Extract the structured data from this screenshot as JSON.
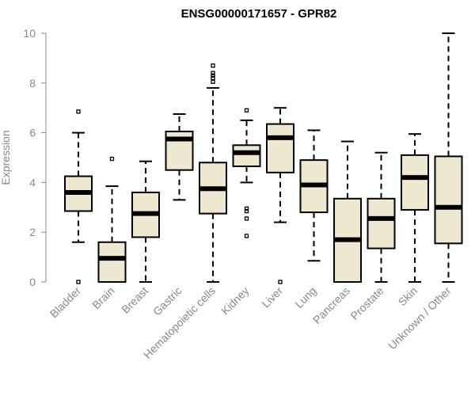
{
  "chart_data": {
    "type": "boxplot",
    "title": "ENSG00000171657 - GPR82",
    "xlabel": "",
    "ylabel": "Expression",
    "ylim": [
      0,
      10
    ],
    "yticks": [
      0,
      2,
      4,
      6,
      8,
      10
    ],
    "grid": false,
    "categories": [
      "Bladder",
      "Brain",
      "Breast",
      "Gastric",
      "Hematopoietic cells",
      "Kidney",
      "Liver",
      "Lung",
      "Pancreas",
      "Prostate",
      "Skin",
      "Unknown / Other"
    ],
    "boxes": [
      {
        "name": "Bladder",
        "whisker_low": 1.6,
        "q1": 2.85,
        "median": 3.6,
        "q3": 4.25,
        "whisker_high": 6.0,
        "outliers": [
          6.85,
          0.0
        ]
      },
      {
        "name": "Brain",
        "whisker_low": 0.0,
        "q1": 0.0,
        "median": 0.95,
        "q3": 1.6,
        "whisker_high": 3.85,
        "outliers": [
          4.95
        ]
      },
      {
        "name": "Breast",
        "whisker_low": 0.0,
        "q1": 1.8,
        "median": 2.75,
        "q3": 3.6,
        "whisker_high": 4.85,
        "outliers": []
      },
      {
        "name": "Gastric",
        "whisker_low": 3.3,
        "q1": 4.5,
        "median": 5.75,
        "q3": 6.05,
        "whisker_high": 6.75,
        "outliers": []
      },
      {
        "name": "Hematopoietic cells",
        "whisker_low": 0.0,
        "q1": 2.75,
        "median": 3.75,
        "q3": 4.8,
        "whisker_high": 7.8,
        "outliers": [
          8.05,
          8.2,
          8.3,
          8.4,
          8.7
        ]
      },
      {
        "name": "Kidney",
        "whisker_low": 4.0,
        "q1": 4.65,
        "median": 5.2,
        "q3": 5.5,
        "whisker_high": 6.5,
        "outliers": [
          6.9,
          2.95,
          2.85,
          2.55,
          1.85
        ]
      },
      {
        "name": "Liver",
        "whisker_low": 2.4,
        "q1": 4.4,
        "median": 5.8,
        "q3": 6.35,
        "whisker_high": 7.0,
        "outliers": [
          0.0
        ]
      },
      {
        "name": "Lung",
        "whisker_low": 0.85,
        "q1": 2.8,
        "median": 3.9,
        "q3": 4.9,
        "whisker_high": 6.1,
        "outliers": []
      },
      {
        "name": "Pancreas",
        "whisker_low": 0.0,
        "q1": 0.0,
        "median": 1.7,
        "q3": 3.35,
        "whisker_high": 5.65,
        "outliers": []
      },
      {
        "name": "Prostate",
        "whisker_low": 0.0,
        "q1": 1.35,
        "median": 2.55,
        "q3": 3.35,
        "whisker_high": 5.2,
        "outliers": []
      },
      {
        "name": "Skin",
        "whisker_low": 0.0,
        "q1": 2.9,
        "median": 4.2,
        "q3": 5.1,
        "whisker_high": 5.95,
        "outliers": []
      },
      {
        "name": "Unknown / Other",
        "whisker_low": 0.0,
        "q1": 1.55,
        "median": 3.0,
        "q3": 5.05,
        "whisker_high": 10.0,
        "outliers": []
      }
    ],
    "colors": {
      "box_fill": "#EEE8D0",
      "box_stroke": "#000000",
      "median": "#000000",
      "axis": "#888888",
      "tick_label": "#888888",
      "title": "#000000"
    }
  }
}
